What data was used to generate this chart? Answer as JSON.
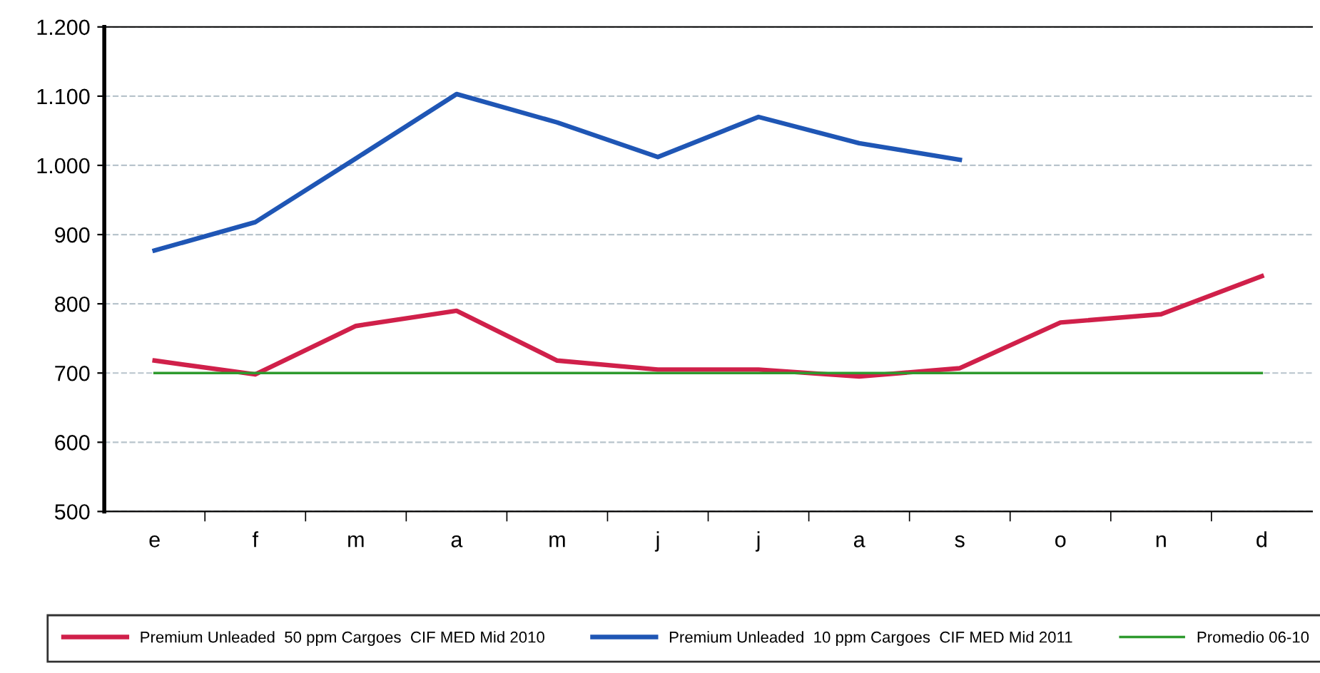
{
  "chart_data": {
    "type": "line",
    "categories": [
      "e",
      "f",
      "m",
      "a",
      "m",
      "j",
      "j",
      "a",
      "s",
      "o",
      "n",
      "d"
    ],
    "series": [
      {
        "name": "Premium Unleaded  50 ppm Cargoes  CIF MED Mid 2010",
        "color": "#d0204a",
        "values": [
          718,
          698,
          768,
          790,
          718,
          705,
          705,
          695,
          707,
          773,
          785,
          840
        ]
      },
      {
        "name": "Premium Unleaded  10 ppm Cargoes  CIF MED Mid 2011",
        "color": "#1f56b5",
        "values": [
          877,
          918,
          1010,
          1103,
          1062,
          1012,
          1070,
          1032,
          1008,
          null,
          null,
          null
        ]
      },
      {
        "name": "Promedio 06-10",
        "color": "#2e9a2e",
        "values": [
          700,
          700,
          700,
          700,
          700,
          700,
          700,
          700,
          700,
          700,
          700,
          700
        ]
      }
    ],
    "ylim": [
      500,
      1200
    ],
    "yticks": [
      500,
      600,
      700,
      800,
      900,
      {
        "value": 1000,
        "label": "1.000"
      },
      {
        "value": 1100,
        "label": "1.100"
      },
      {
        "value": 1200,
        "label": "1.200"
      }
    ],
    "grid": "y",
    "legend": "bottom",
    "marker": "none",
    "line_style": "solid"
  }
}
